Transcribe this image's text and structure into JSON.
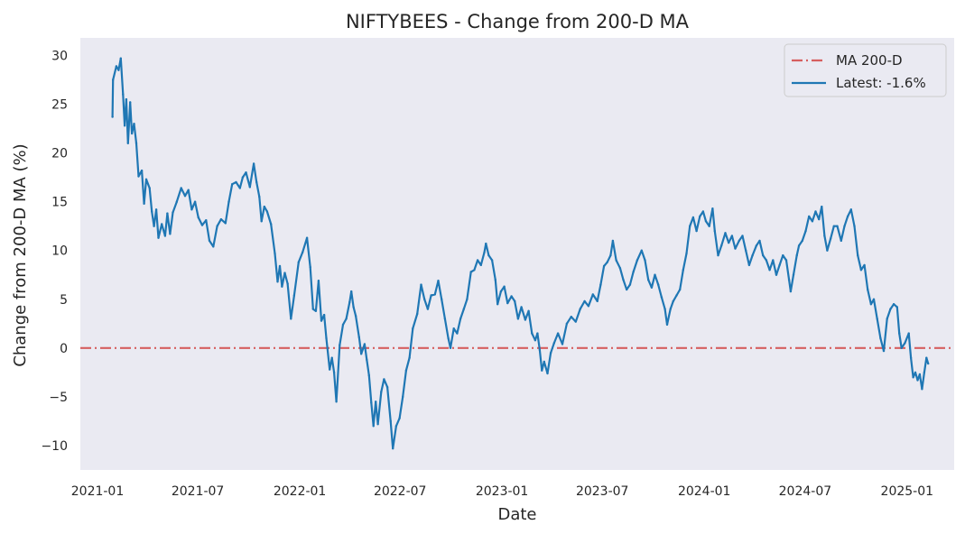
{
  "chart_data": {
    "type": "line",
    "title": "NIFTYBEES - Change from 200-D MA",
    "xlabel": "Date",
    "ylabel": "Change from 200-D MA (%)",
    "ylim": [
      -12.5,
      31.8
    ],
    "xlim": [
      "2020-12-01",
      "2025-03-27"
    ],
    "grid": false,
    "legend_position": "top-right",
    "x_ticks": [
      "2021-01",
      "2021-07",
      "2022-01",
      "2022-07",
      "2023-01",
      "2023-07",
      "2024-01",
      "2024-07",
      "2025-01"
    ],
    "y_ticks": [
      -10,
      -5,
      0,
      5,
      10,
      15,
      20,
      25,
      30
    ],
    "reference_line": {
      "name": "MA 200-D",
      "value": 0,
      "color": "#d65f5f",
      "style": "dash-dot"
    },
    "series": [
      {
        "name": "Latest: -1.6%",
        "color": "#1f77b4",
        "points": [
          [
            "2021-01-28",
            23.7
          ],
          [
            "2021-01-29",
            27.5
          ],
          [
            "2021-02-04",
            28.9
          ],
          [
            "2021-02-08",
            28.5
          ],
          [
            "2021-02-12",
            29.7
          ],
          [
            "2021-02-16",
            26.0
          ],
          [
            "2021-02-19",
            22.8
          ],
          [
            "2021-02-22",
            25.5
          ],
          [
            "2021-02-25",
            21.0
          ],
          [
            "2021-03-01",
            25.2
          ],
          [
            "2021-03-04",
            22.0
          ],
          [
            "2021-03-08",
            23.0
          ],
          [
            "2021-03-12",
            21.0
          ],
          [
            "2021-03-16",
            17.6
          ],
          [
            "2021-03-22",
            18.2
          ],
          [
            "2021-03-26",
            14.8
          ],
          [
            "2021-03-30",
            17.3
          ],
          [
            "2021-04-05",
            16.4
          ],
          [
            "2021-04-09",
            14.0
          ],
          [
            "2021-04-13",
            12.5
          ],
          [
            "2021-04-17",
            14.2
          ],
          [
            "2021-04-21",
            11.3
          ],
          [
            "2021-04-27",
            12.7
          ],
          [
            "2021-05-03",
            11.5
          ],
          [
            "2021-05-07",
            13.8
          ],
          [
            "2021-05-12",
            11.7
          ],
          [
            "2021-05-17",
            13.9
          ],
          [
            "2021-05-24",
            15.0
          ],
          [
            "2021-06-01",
            16.4
          ],
          [
            "2021-06-08",
            15.6
          ],
          [
            "2021-06-14",
            16.2
          ],
          [
            "2021-06-20",
            14.2
          ],
          [
            "2021-06-26",
            15.0
          ],
          [
            "2021-07-02",
            13.4
          ],
          [
            "2021-07-09",
            12.6
          ],
          [
            "2021-07-16",
            13.1
          ],
          [
            "2021-07-22",
            11.0
          ],
          [
            "2021-07-29",
            10.4
          ],
          [
            "2021-08-05",
            12.5
          ],
          [
            "2021-08-12",
            13.2
          ],
          [
            "2021-08-20",
            12.8
          ],
          [
            "2021-08-26",
            15.0
          ],
          [
            "2021-09-01",
            16.8
          ],
          [
            "2021-09-08",
            17.0
          ],
          [
            "2021-09-15",
            16.4
          ],
          [
            "2021-09-20",
            17.5
          ],
          [
            "2021-09-26",
            18.0
          ],
          [
            "2021-10-03",
            16.5
          ],
          [
            "2021-10-10",
            18.9
          ],
          [
            "2021-10-15",
            17.0
          ],
          [
            "2021-10-20",
            15.5
          ],
          [
            "2021-10-24",
            13.0
          ],
          [
            "2021-10-29",
            14.5
          ],
          [
            "2021-11-03",
            14.0
          ],
          [
            "2021-11-10",
            12.7
          ],
          [
            "2021-11-17",
            9.7
          ],
          [
            "2021-11-22",
            6.8
          ],
          [
            "2021-11-26",
            8.4
          ],
          [
            "2021-11-30",
            6.3
          ],
          [
            "2021-12-05",
            7.7
          ],
          [
            "2021-12-10",
            6.6
          ],
          [
            "2021-12-16",
            3.0
          ],
          [
            "2021-12-22",
            5.4
          ],
          [
            "2021-12-30",
            8.8
          ],
          [
            "2022-01-06",
            9.8
          ],
          [
            "2022-01-14",
            11.3
          ],
          [
            "2022-01-20",
            8.3
          ],
          [
            "2022-01-25",
            4.0
          ],
          [
            "2022-01-30",
            3.8
          ],
          [
            "2022-02-04",
            6.9
          ],
          [
            "2022-02-09",
            2.8
          ],
          [
            "2022-02-14",
            3.4
          ],
          [
            "2022-02-18",
            1.0
          ],
          [
            "2022-02-24",
            -2.2
          ],
          [
            "2022-02-28",
            -1.0
          ],
          [
            "2022-03-04",
            -2.5
          ],
          [
            "2022-03-08",
            -5.5
          ],
          [
            "2022-03-14",
            0.3
          ],
          [
            "2022-03-20",
            2.4
          ],
          [
            "2022-03-26",
            3.0
          ],
          [
            "2022-04-01",
            4.7
          ],
          [
            "2022-04-04",
            5.8
          ],
          [
            "2022-04-08",
            4.2
          ],
          [
            "2022-04-12",
            3.3
          ],
          [
            "2022-04-18",
            1.1
          ],
          [
            "2022-04-22",
            -0.6
          ],
          [
            "2022-04-28",
            0.4
          ],
          [
            "2022-05-02",
            -1.2
          ],
          [
            "2022-05-06",
            -2.8
          ],
          [
            "2022-05-10",
            -5.6
          ],
          [
            "2022-05-14",
            -8.0
          ],
          [
            "2022-05-18",
            -5.5
          ],
          [
            "2022-05-22",
            -7.8
          ],
          [
            "2022-05-28",
            -4.5
          ],
          [
            "2022-06-02",
            -3.2
          ],
          [
            "2022-06-08",
            -4.0
          ],
          [
            "2022-06-14",
            -7.5
          ],
          [
            "2022-06-18",
            -10.3
          ],
          [
            "2022-06-24",
            -8.0
          ],
          [
            "2022-06-30",
            -7.2
          ],
          [
            "2022-07-06",
            -5.0
          ],
          [
            "2022-07-12",
            -2.3
          ],
          [
            "2022-07-18",
            -1.0
          ],
          [
            "2022-07-24",
            2.0
          ],
          [
            "2022-08-01",
            3.5
          ],
          [
            "2022-08-08",
            6.5
          ],
          [
            "2022-08-14",
            5.0
          ],
          [
            "2022-08-20",
            4.0
          ],
          [
            "2022-08-26",
            5.4
          ],
          [
            "2022-09-02",
            5.5
          ],
          [
            "2022-09-08",
            6.9
          ],
          [
            "2022-09-14",
            5.0
          ],
          [
            "2022-09-20",
            3.0
          ],
          [
            "2022-09-26",
            1.0
          ],
          [
            "2022-09-30",
            0.0
          ],
          [
            "2022-10-06",
            2.0
          ],
          [
            "2022-10-12",
            1.5
          ],
          [
            "2022-10-18",
            3.0
          ],
          [
            "2022-10-24",
            4.0
          ],
          [
            "2022-10-30",
            5.0
          ],
          [
            "2022-11-06",
            7.8
          ],
          [
            "2022-11-12",
            8.0
          ],
          [
            "2022-11-18",
            9.0
          ],
          [
            "2022-11-24",
            8.5
          ],
          [
            "2022-11-30",
            9.8
          ],
          [
            "2022-12-03",
            10.7
          ],
          [
            "2022-12-08",
            9.5
          ],
          [
            "2022-12-14",
            9.0
          ],
          [
            "2022-12-20",
            7.0
          ],
          [
            "2022-12-24",
            4.5
          ],
          [
            "2022-12-30",
            5.8
          ],
          [
            "2023-01-05",
            6.3
          ],
          [
            "2023-01-11",
            4.6
          ],
          [
            "2023-01-18",
            5.3
          ],
          [
            "2023-01-24",
            4.8
          ],
          [
            "2023-01-30",
            3.0
          ],
          [
            "2023-02-05",
            4.2
          ],
          [
            "2023-02-12",
            2.9
          ],
          [
            "2023-02-18",
            3.8
          ],
          [
            "2023-02-24",
            1.5
          ],
          [
            "2023-03-02",
            0.8
          ],
          [
            "2023-03-06",
            1.5
          ],
          [
            "2023-03-10",
            -0.2
          ],
          [
            "2023-03-14",
            -2.3
          ],
          [
            "2023-03-18",
            -1.4
          ],
          [
            "2023-03-24",
            -2.6
          ],
          [
            "2023-03-30",
            -0.5
          ],
          [
            "2023-04-05",
            0.5
          ],
          [
            "2023-04-12",
            1.5
          ],
          [
            "2023-04-20",
            0.4
          ],
          [
            "2023-04-28",
            2.5
          ],
          [
            "2023-05-06",
            3.2
          ],
          [
            "2023-05-14",
            2.7
          ],
          [
            "2023-05-22",
            4.0
          ],
          [
            "2023-05-30",
            4.8
          ],
          [
            "2023-06-06",
            4.3
          ],
          [
            "2023-06-14",
            5.5
          ],
          [
            "2023-06-22",
            4.8
          ],
          [
            "2023-06-28",
            6.5
          ],
          [
            "2023-07-04",
            8.4
          ],
          [
            "2023-07-10",
            8.8
          ],
          [
            "2023-07-16",
            9.5
          ],
          [
            "2023-07-20",
            11.0
          ],
          [
            "2023-07-26",
            9.0
          ],
          [
            "2023-08-02",
            8.2
          ],
          [
            "2023-08-08",
            7.0
          ],
          [
            "2023-08-14",
            6.0
          ],
          [
            "2023-08-20",
            6.5
          ],
          [
            "2023-08-26",
            7.8
          ],
          [
            "2023-09-02",
            9.0
          ],
          [
            "2023-09-10",
            10.0
          ],
          [
            "2023-09-16",
            9.0
          ],
          [
            "2023-09-22",
            7.0
          ],
          [
            "2023-09-28",
            6.2
          ],
          [
            "2023-10-04",
            7.5
          ],
          [
            "2023-10-10",
            6.5
          ],
          [
            "2023-10-16",
            5.2
          ],
          [
            "2023-10-22",
            4.0
          ],
          [
            "2023-10-26",
            2.4
          ],
          [
            "2023-11-01",
            4.0
          ],
          [
            "2023-11-06",
            4.8
          ],
          [
            "2023-11-12",
            5.4
          ],
          [
            "2023-11-18",
            6.0
          ],
          [
            "2023-11-24",
            8.0
          ],
          [
            "2023-11-30",
            9.7
          ],
          [
            "2023-12-06",
            12.5
          ],
          [
            "2023-12-12",
            13.4
          ],
          [
            "2023-12-18",
            12.0
          ],
          [
            "2023-12-24",
            13.5
          ],
          [
            "2023-12-30",
            14.0
          ],
          [
            "2024-01-04",
            13.0
          ],
          [
            "2024-01-10",
            12.5
          ],
          [
            "2024-01-16",
            14.3
          ],
          [
            "2024-01-20",
            12.0
          ],
          [
            "2024-01-26",
            9.5
          ],
          [
            "2024-02-01",
            10.5
          ],
          [
            "2024-02-08",
            11.8
          ],
          [
            "2024-02-14",
            10.8
          ],
          [
            "2024-02-20",
            11.5
          ],
          [
            "2024-02-26",
            10.2
          ],
          [
            "2024-03-04",
            11.0
          ],
          [
            "2024-03-10",
            11.5
          ],
          [
            "2024-03-16",
            10.0
          ],
          [
            "2024-03-22",
            8.5
          ],
          [
            "2024-03-28",
            9.5
          ],
          [
            "2024-04-04",
            10.5
          ],
          [
            "2024-04-10",
            11.0
          ],
          [
            "2024-04-16",
            9.5
          ],
          [
            "2024-04-22",
            9.0
          ],
          [
            "2024-04-28",
            8.0
          ],
          [
            "2024-05-04",
            9.0
          ],
          [
            "2024-05-10",
            7.5
          ],
          [
            "2024-05-16",
            8.5
          ],
          [
            "2024-05-22",
            9.5
          ],
          [
            "2024-05-28",
            9.0
          ],
          [
            "2024-06-02",
            7.0
          ],
          [
            "2024-06-05",
            5.8
          ],
          [
            "2024-06-10",
            7.5
          ],
          [
            "2024-06-16",
            9.5
          ],
          [
            "2024-06-20",
            10.5
          ],
          [
            "2024-06-26",
            11.0
          ],
          [
            "2024-07-02",
            12.0
          ],
          [
            "2024-07-08",
            13.5
          ],
          [
            "2024-07-14",
            13.0
          ],
          [
            "2024-07-20",
            14.0
          ],
          [
            "2024-07-26",
            13.2
          ],
          [
            "2024-07-31",
            14.5
          ],
          [
            "2024-08-05",
            11.5
          ],
          [
            "2024-08-10",
            10.0
          ],
          [
            "2024-08-16",
            11.2
          ],
          [
            "2024-08-22",
            12.5
          ],
          [
            "2024-08-28",
            12.5
          ],
          [
            "2024-09-04",
            11.0
          ],
          [
            "2024-09-10",
            12.5
          ],
          [
            "2024-09-16",
            13.5
          ],
          [
            "2024-09-22",
            14.2
          ],
          [
            "2024-09-28",
            12.5
          ],
          [
            "2024-10-04",
            9.5
          ],
          [
            "2024-10-10",
            8.0
          ],
          [
            "2024-10-16",
            8.5
          ],
          [
            "2024-10-22",
            6.0
          ],
          [
            "2024-10-28",
            4.5
          ],
          [
            "2024-11-02",
            5.0
          ],
          [
            "2024-11-08",
            3.0
          ],
          [
            "2024-11-14",
            1.0
          ],
          [
            "2024-11-20",
            -0.3
          ],
          [
            "2024-11-26",
            3.0
          ],
          [
            "2024-12-02",
            4.0
          ],
          [
            "2024-12-08",
            4.5
          ],
          [
            "2024-12-14",
            4.2
          ],
          [
            "2024-12-18",
            1.5
          ],
          [
            "2024-12-22",
            0.0
          ],
          [
            "2024-12-28",
            0.5
          ],
          [
            "2025-01-04",
            1.5
          ],
          [
            "2025-01-08",
            -1.0
          ],
          [
            "2025-01-12",
            -3.0
          ],
          [
            "2025-01-16",
            -2.5
          ],
          [
            "2025-01-20",
            -3.3
          ],
          [
            "2025-01-24",
            -2.7
          ],
          [
            "2025-01-28",
            -4.2
          ],
          [
            "2025-02-01",
            -2.5
          ],
          [
            "2025-02-05",
            -1.0
          ],
          [
            "2025-02-08",
            -1.6
          ]
        ]
      }
    ]
  }
}
